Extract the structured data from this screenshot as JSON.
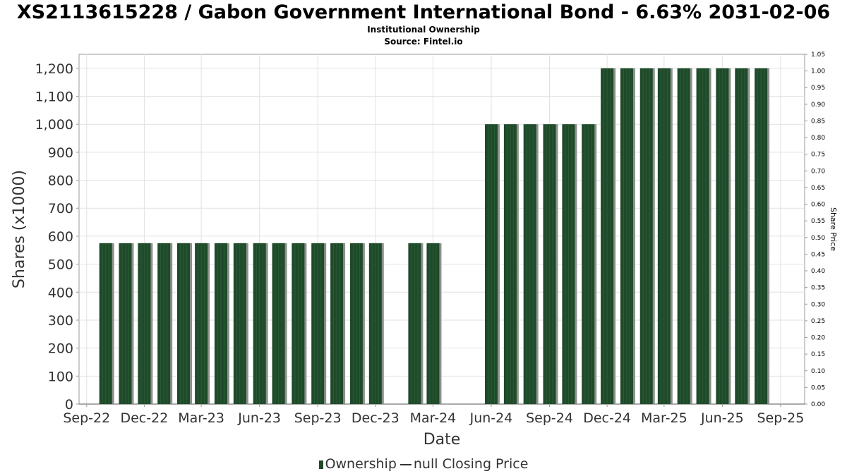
{
  "title": "XS2113615228 / Gabon Government International Bond - 6.63% 2031-02-06",
  "subtitle": "Institutional Ownership",
  "source": "Source: Fintel.io",
  "legend": {
    "ownership": "Ownership",
    "price": "null Closing Price"
  },
  "colors": {
    "bar": "#1f4a2a",
    "bar_shadow": "#8c918c",
    "grid": "#e1e1e1"
  },
  "chart_data": {
    "type": "bar",
    "xlabel": "Date",
    "ylabel": "Shares (x1000)",
    "y2label": "Share Price",
    "ylim": [
      0,
      1250
    ],
    "y2lim": [
      0,
      1.05
    ],
    "yticks": [
      "0",
      "100",
      "200",
      "300",
      "400",
      "500",
      "600",
      "700",
      "800",
      "900",
      "1,000",
      "1,100",
      "1,200"
    ],
    "y2ticks": [
      "0.00",
      "0.05",
      "0.10",
      "0.15",
      "0.20",
      "0.25",
      "0.30",
      "0.35",
      "0.40",
      "0.45",
      "0.50",
      "0.55",
      "0.60",
      "0.65",
      "0.70",
      "0.75",
      "0.80",
      "0.85",
      "0.90",
      "0.95",
      "1.00",
      "1.05"
    ],
    "xticks": [
      "Sep-22",
      "Dec-22",
      "Mar-23",
      "Jun-23",
      "Sep-23",
      "Dec-23",
      "Mar-24",
      "Jun-24",
      "Sep-24",
      "Dec-24",
      "Mar-25",
      "Jun-25",
      "Sep-25"
    ],
    "xtick_dates": [
      "2022-09-01",
      "2022-12-01",
      "2023-03-01",
      "2023-06-01",
      "2023-09-01",
      "2023-12-01",
      "2024-03-01",
      "2024-06-01",
      "2024-09-01",
      "2024-12-01",
      "2025-03-01",
      "2025-06-01",
      "2025-09-01"
    ],
    "x_range": [
      "2022-08-20",
      "2025-10-09"
    ],
    "grid": true,
    "legend_position": "bottom",
    "series": [
      {
        "name": "Ownership",
        "dates": [
          "2022-10-01",
          "2022-11-01",
          "2022-12-01",
          "2023-01-01",
          "2023-02-01",
          "2023-03-01",
          "2023-04-01",
          "2023-05-01",
          "2023-06-01",
          "2023-07-01",
          "2023-08-01",
          "2023-09-01",
          "2023-10-01",
          "2023-11-01",
          "2023-12-01",
          "2024-02-01",
          "2024-03-01",
          "2024-06-01",
          "2024-07-01",
          "2024-08-01",
          "2024-09-01",
          "2024-10-01",
          "2024-11-01",
          "2024-12-01",
          "2025-01-01",
          "2025-02-01",
          "2025-03-01",
          "2025-04-01",
          "2025-05-01",
          "2025-06-01",
          "2025-07-01",
          "2025-08-01"
        ],
        "values": [
          575,
          575,
          575,
          575,
          575,
          575,
          575,
          575,
          575,
          575,
          575,
          575,
          575,
          575,
          575,
          575,
          575,
          1000,
          1000,
          1000,
          1000,
          1000,
          1000,
          1200,
          1200,
          1200,
          1200,
          1200,
          1200,
          1200,
          1200,
          1200
        ]
      }
    ]
  }
}
